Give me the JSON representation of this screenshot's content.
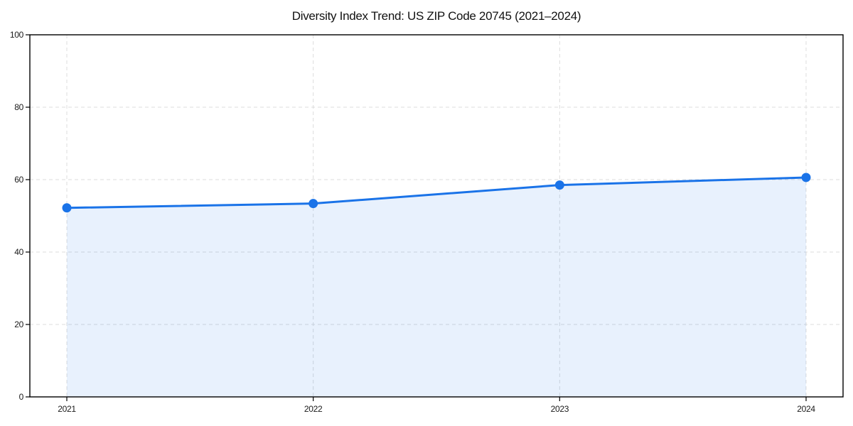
{
  "chart_data": {
    "type": "area",
    "title": "Diversity Index Trend: US ZIP Code 20745 (2021–2024)",
    "x": [
      2021,
      2022,
      2023,
      2024
    ],
    "xticklabels": [
      "2021",
      "2022",
      "2023",
      "2024"
    ],
    "values": [
      52.2,
      53.4,
      58.5,
      60.6
    ],
    "series_name": "Diversity Index",
    "xlabel": "",
    "ylabel": "",
    "ylim": [
      0,
      100
    ],
    "yticks": [
      0,
      20,
      40,
      60,
      80,
      100
    ],
    "yticklabels": [
      "0",
      "20",
      "40",
      "60",
      "80",
      "100"
    ],
    "grid": true,
    "grid_style": "dashed",
    "legend": "none",
    "marker": "circle",
    "colors": {
      "line": "#1a73e8",
      "fill": "rgba(26,115,232,0.10)",
      "grid": "#dcdcdc",
      "axis": "#000000",
      "tick_text": "#1a1a1a",
      "title_text": "#111111",
      "background": "#ffffff"
    }
  }
}
